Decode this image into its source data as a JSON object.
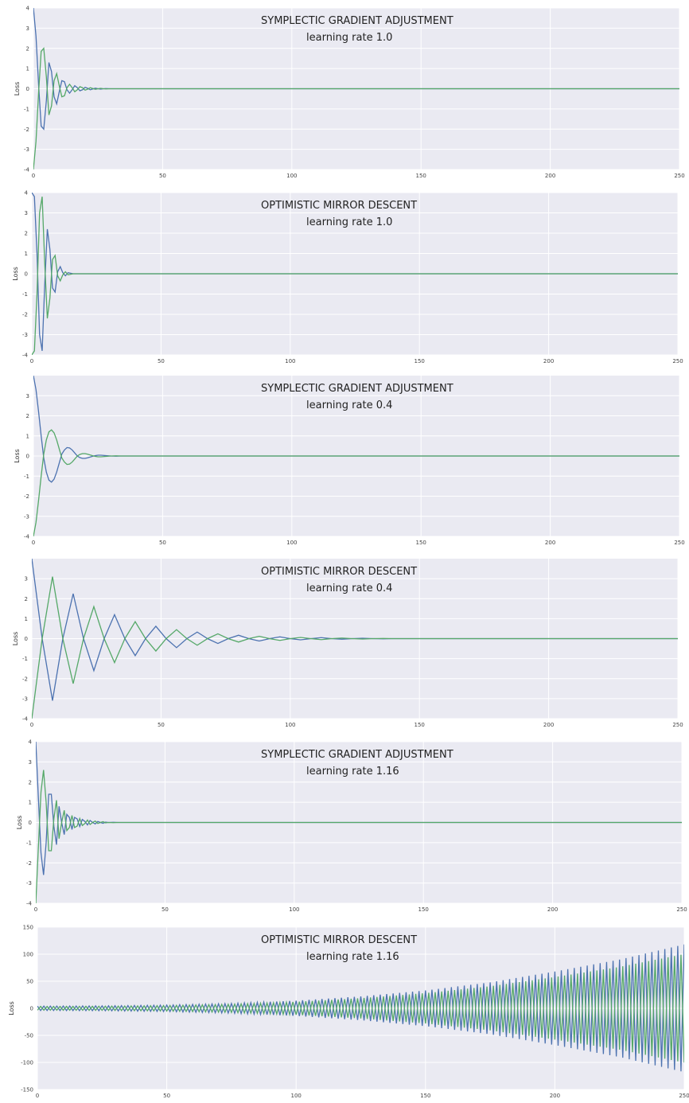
{
  "colors": {
    "panel_bg": "#EAEAF2",
    "grid": "#FFFFFF",
    "series_blue": "#4C72B0",
    "series_green": "#55A868"
  },
  "chart_data": [
    {
      "type": "line",
      "title": "SYMPLECTIC GRADIENT ADJUSTMENT",
      "subtitle": "learning rate 1.0",
      "xlabel": "",
      "ylabel": "Loss",
      "xlim": [
        0,
        250
      ],
      "ylim": [
        -4,
        4
      ],
      "xticks": [
        0,
        50,
        100,
        150,
        200,
        250
      ],
      "yticks": [
        -4,
        -3,
        -2,
        -1,
        0,
        1,
        2,
        3,
        4
      ],
      "grid": true,
      "series": [
        {
          "color": "#4C72B0",
          "x": [
            0,
            1,
            2,
            3,
            4,
            5,
            6,
            7,
            8,
            9,
            10,
            11,
            12,
            13,
            14,
            15,
            16,
            17,
            18,
            19,
            20,
            21,
            22,
            23,
            24,
            25,
            26,
            27,
            28,
            30,
            35,
            40,
            60,
            100,
            150,
            200,
            250
          ],
          "y": [
            4.0,
            2.6,
            0.2,
            -1.85,
            -2.0,
            -0.6,
            1.3,
            0.85,
            -0.4,
            -0.75,
            -0.15,
            0.4,
            0.35,
            -0.05,
            -0.22,
            -0.05,
            0.15,
            0.05,
            -0.1,
            -0.05,
            0.07,
            0.02,
            -0.05,
            -0.01,
            0.03,
            0.0,
            -0.02,
            0.0,
            0.01,
            0.0,
            0,
            0,
            0,
            0,
            0,
            0,
            0
          ]
        },
        {
          "color": "#55A868",
          "x": [
            0,
            1,
            2,
            3,
            4,
            5,
            6,
            7,
            8,
            9,
            10,
            11,
            12,
            13,
            14,
            15,
            16,
            17,
            18,
            19,
            20,
            21,
            22,
            23,
            24,
            25,
            26,
            27,
            28,
            30,
            35,
            40,
            60,
            100,
            150,
            200,
            250
          ],
          "y": [
            -4.0,
            -2.6,
            -0.2,
            1.85,
            2.0,
            0.6,
            -1.3,
            -0.85,
            0.4,
            0.75,
            0.15,
            -0.4,
            -0.35,
            0.05,
            0.22,
            0.05,
            -0.15,
            -0.05,
            0.1,
            0.05,
            -0.07,
            -0.02,
            0.05,
            0.01,
            -0.03,
            0.0,
            0.02,
            0.0,
            -0.01,
            0.0,
            0,
            0,
            0,
            0,
            0,
            0,
            0
          ]
        }
      ]
    },
    {
      "type": "line",
      "title": "OPTIMISTIC MIRROR DESCENT",
      "subtitle": "learning rate 1.0",
      "xlabel": "",
      "ylabel": "Loss",
      "xlim": [
        0,
        250
      ],
      "ylim": [
        -4,
        4
      ],
      "xticks": [
        0,
        50,
        100,
        150,
        200,
        250
      ],
      "yticks": [
        -4,
        -3,
        -2,
        -1,
        0,
        1,
        2,
        3,
        4
      ],
      "grid": true,
      "series": [
        {
          "color": "#4C72B0",
          "x": [
            0,
            1,
            2,
            3,
            4,
            5,
            6,
            7,
            8,
            9,
            10,
            11,
            12,
            13,
            14,
            16,
            20,
            40,
            100,
            150,
            200,
            250
          ],
          "y": [
            4.0,
            3.8,
            1.0,
            -3.0,
            -3.8,
            -0.5,
            2.2,
            1.2,
            -0.7,
            -0.9,
            0.1,
            0.35,
            0.05,
            -0.1,
            0.05,
            0.0,
            0,
            0,
            0,
            0,
            0,
            0
          ]
        },
        {
          "color": "#55A868",
          "x": [
            0,
            1,
            2,
            3,
            4,
            5,
            6,
            7,
            8,
            9,
            10,
            11,
            12,
            13,
            14,
            16,
            20,
            40,
            100,
            150,
            200,
            250
          ],
          "y": [
            -4.0,
            -3.8,
            -1.0,
            3.0,
            3.8,
            0.5,
            -2.2,
            -1.2,
            0.7,
            0.9,
            -0.1,
            -0.35,
            -0.05,
            0.1,
            -0.05,
            0.0,
            0,
            0,
            0,
            0,
            0,
            0
          ]
        }
      ]
    },
    {
      "type": "line",
      "title": "SYMPLECTIC GRADIENT ADJUSTMENT",
      "subtitle": "learning rate 0.4",
      "xlabel": "",
      "ylabel": "Loss",
      "xlim": [
        0,
        250
      ],
      "ylim": [
        -4,
        4
      ],
      "xticks": [
        0,
        50,
        100,
        150,
        200,
        250
      ],
      "yticks": [
        -4,
        -3,
        -2,
        -1,
        0,
        1,
        2,
        3
      ],
      "grid": true,
      "series": [
        {
          "color": "#4C72B0",
          "x": [
            0,
            1,
            2,
            3,
            4,
            5,
            6,
            7,
            8,
            9,
            10,
            11,
            12,
            13,
            14,
            15,
            16,
            17,
            18,
            19,
            20,
            21,
            22,
            23,
            24,
            25,
            26,
            28,
            30,
            32,
            34,
            36,
            40,
            60,
            100,
            150,
            200,
            250
          ],
          "y": [
            4.0,
            3.3,
            2.2,
            1.0,
            -0.1,
            -0.8,
            -1.2,
            -1.3,
            -1.15,
            -0.8,
            -0.35,
            0.1,
            0.3,
            0.42,
            0.4,
            0.3,
            0.15,
            0.0,
            -0.08,
            -0.12,
            -0.12,
            -0.09,
            -0.05,
            -0.01,
            0.02,
            0.04,
            0.04,
            0.02,
            0.0,
            -0.01,
            0.0,
            0.0,
            0,
            0,
            0,
            0,
            0,
            0
          ]
        },
        {
          "color": "#55A868",
          "x": [
            0,
            1,
            2,
            3,
            4,
            5,
            6,
            7,
            8,
            9,
            10,
            11,
            12,
            13,
            14,
            15,
            16,
            17,
            18,
            19,
            20,
            21,
            22,
            23,
            24,
            25,
            26,
            28,
            30,
            32,
            34,
            36,
            40,
            60,
            100,
            150,
            200,
            250
          ],
          "y": [
            -4.0,
            -3.3,
            -2.2,
            -1.0,
            0.1,
            0.8,
            1.2,
            1.3,
            1.15,
            0.8,
            0.35,
            -0.1,
            -0.3,
            -0.42,
            -0.4,
            -0.3,
            -0.15,
            0.0,
            0.08,
            0.12,
            0.12,
            0.09,
            0.05,
            0.01,
            -0.02,
            -0.04,
            -0.04,
            -0.02,
            0.0,
            0.01,
            0.0,
            0.0,
            0,
            0,
            0,
            0,
            0,
            0
          ]
        }
      ]
    },
    {
      "type": "line",
      "title": "OPTIMISTIC MIRROR DESCENT",
      "subtitle": "learning rate 0.4",
      "xlabel": "",
      "ylabel": "Loss",
      "xlim": [
        0,
        250
      ],
      "ylim": [
        -4,
        4
      ],
      "xticks": [
        0,
        50,
        100,
        150,
        200,
        250
      ],
      "yticks": [
        -4,
        -3,
        -2,
        -1,
        0,
        1,
        2,
        3
      ],
      "grid": true,
      "series": [
        {
          "color": "#4C72B0",
          "x": [
            0,
            4,
            8,
            12,
            16,
            20,
            24,
            28,
            32,
            36,
            40,
            44,
            48,
            52,
            56,
            60,
            64,
            68,
            72,
            76,
            80,
            84,
            88,
            92,
            96,
            100,
            104,
            108,
            112,
            116,
            120,
            124,
            128,
            132,
            136,
            140,
            150,
            200,
            250
          ],
          "y": [
            4.0,
            0.0,
            -3.1,
            0.0,
            2.25,
            0.0,
            -1.6,
            0.0,
            1.2,
            0.0,
            -0.85,
            0.0,
            0.62,
            0.0,
            -0.45,
            0.0,
            0.33,
            0.0,
            -0.24,
            0.0,
            0.17,
            0.0,
            -0.12,
            0.0,
            0.09,
            0.0,
            -0.06,
            0.0,
            0.05,
            0.0,
            -0.03,
            0.0,
            0.02,
            0.0,
            -0.01,
            0.0,
            0,
            0,
            0
          ]
        },
        {
          "color": "#55A868",
          "x": [
            0,
            4,
            8,
            12,
            16,
            20,
            24,
            28,
            32,
            36,
            40,
            44,
            48,
            52,
            56,
            60,
            64,
            68,
            72,
            76,
            80,
            84,
            88,
            92,
            96,
            100,
            104,
            108,
            112,
            116,
            120,
            124,
            128,
            132,
            136,
            140,
            150,
            200,
            250
          ],
          "y": [
            -4.0,
            0.0,
            3.1,
            0.0,
            -2.25,
            0.0,
            1.6,
            0.0,
            -1.2,
            0.0,
            0.85,
            0.0,
            -0.62,
            0.0,
            0.45,
            0.0,
            -0.33,
            0.0,
            0.24,
            0.0,
            -0.17,
            0.0,
            0.12,
            0.0,
            -0.09,
            0.0,
            0.06,
            0.0,
            -0.05,
            0.0,
            0.03,
            0.0,
            -0.02,
            0.0,
            0.01,
            0.0,
            0,
            0,
            0
          ]
        }
      ]
    },
    {
      "type": "line",
      "title": "SYMPLECTIC GRADIENT ADJUSTMENT",
      "subtitle": "learning rate 1.16",
      "xlabel": "",
      "ylabel": "Loss",
      "xlim": [
        0,
        250
      ],
      "ylim": [
        -4,
        4
      ],
      "xticks": [
        0,
        50,
        100,
        150,
        200,
        250
      ],
      "yticks": [
        -4,
        -3,
        -2,
        -1,
        0,
        1,
        2,
        3,
        4
      ],
      "grid": true,
      "series": [
        {
          "color": "#4C72B0",
          "x": [
            0,
            1,
            2,
            3,
            4,
            5,
            6,
            7,
            8,
            9,
            10,
            11,
            12,
            13,
            14,
            15,
            16,
            17,
            18,
            19,
            20,
            21,
            22,
            23,
            24,
            25,
            26,
            27,
            28,
            30,
            32,
            35,
            40,
            60,
            100,
            150,
            200,
            250
          ],
          "y": [
            4.0,
            1.2,
            -1.5,
            -2.6,
            -1.0,
            1.4,
            1.4,
            -0.2,
            -1.1,
            0.8,
            0.0,
            -0.6,
            0.4,
            0.25,
            -0.35,
            0.25,
            0.18,
            -0.2,
            0.15,
            0.05,
            -0.12,
            0.1,
            0.0,
            -0.07,
            0.05,
            0.0,
            -0.04,
            0.02,
            0.0,
            0.01,
            0.0,
            0,
            0,
            0,
            0,
            0,
            0,
            0
          ]
        },
        {
          "color": "#55A868",
          "x": [
            0,
            1,
            2,
            3,
            4,
            5,
            6,
            7,
            8,
            9,
            10,
            11,
            12,
            13,
            14,
            15,
            16,
            17,
            18,
            19,
            20,
            21,
            22,
            23,
            24,
            25,
            26,
            27,
            28,
            30,
            32,
            35,
            40,
            60,
            100,
            150,
            200,
            250
          ],
          "y": [
            -4.0,
            -1.2,
            1.5,
            2.6,
            1.0,
            -1.4,
            -1.4,
            0.2,
            1.1,
            -0.8,
            0.0,
            0.6,
            -0.4,
            -0.25,
            0.35,
            -0.25,
            -0.18,
            0.2,
            -0.15,
            -0.05,
            0.12,
            -0.1,
            0.0,
            0.07,
            -0.05,
            0.0,
            0.04,
            -0.02,
            0.0,
            -0.01,
            0.0,
            0,
            0,
            0,
            0,
            0,
            0,
            0
          ]
        }
      ]
    },
    {
      "type": "line",
      "title": "OPTIMISTIC MIRROR DESCENT",
      "subtitle": "learning rate 1.16",
      "xlabel": "",
      "ylabel": "Loss",
      "xlim": [
        0,
        250
      ],
      "ylim": [
        -150,
        150
      ],
      "xticks": [
        0,
        50,
        100,
        150,
        200,
        250
      ],
      "yticks": [
        -150,
        -100,
        -50,
        0,
        50,
        100,
        150
      ],
      "grid": true,
      "envelope_note_values": {
        "period": 2.5,
        "amplitude_start": 4,
        "amplitude_end": 118
      },
      "series": [
        {
          "color": "#4C72B0",
          "x": [
            0,
            25,
            50,
            75,
            100,
            125,
            150,
            175,
            200,
            225,
            250
          ],
          "y_amplitude": [
            4,
            4.5,
            6,
            9,
            14,
            22,
            33,
            48,
            68,
            90,
            118
          ],
          "phase": 0
        },
        {
          "color": "#55A868",
          "x": [
            0,
            25,
            50,
            75,
            100,
            125,
            150,
            175,
            200,
            225,
            250
          ],
          "y_amplitude": [
            4,
            4.5,
            6,
            9,
            14,
            22,
            33,
            48,
            68,
            90,
            118
          ],
          "phase": 0.9
        }
      ]
    }
  ]
}
